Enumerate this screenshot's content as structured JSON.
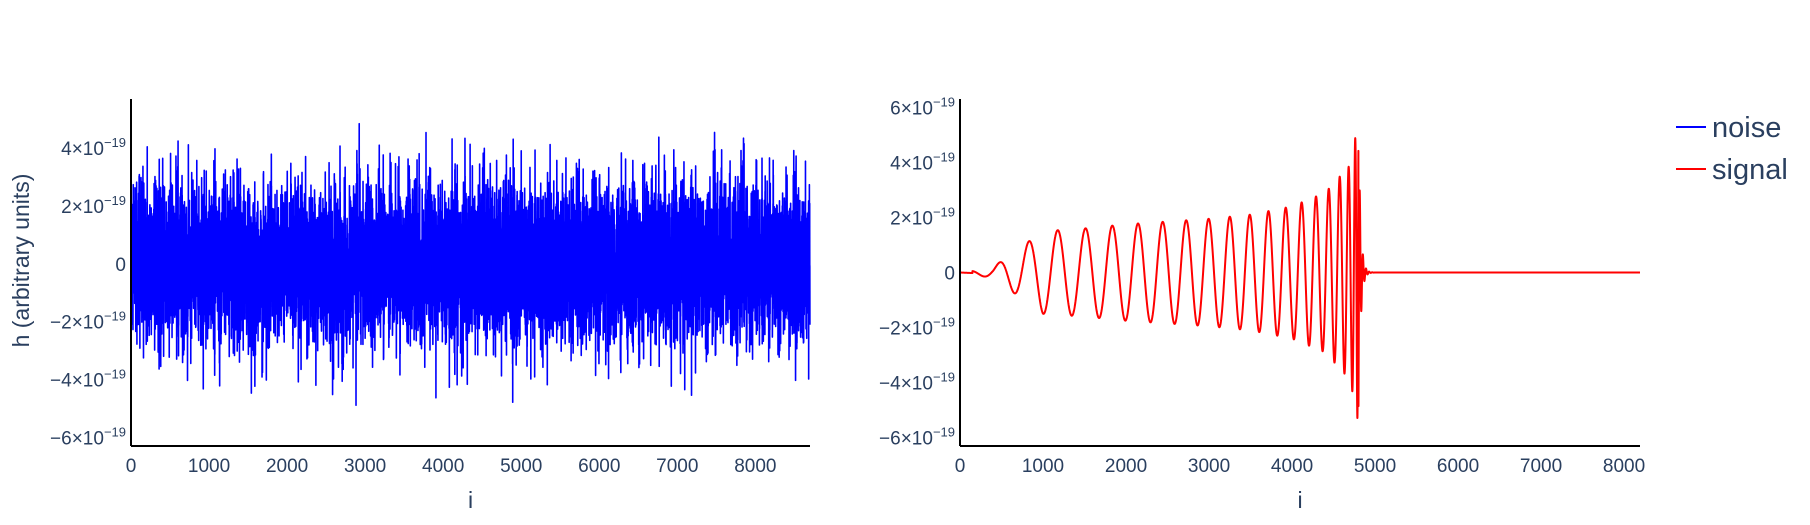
{
  "chart_data": [
    {
      "type": "line",
      "name": "left-panel",
      "xlabel": "i",
      "ylabel": "h (arbitrary units)",
      "xlim": [
        0,
        8700
      ],
      "ylim": [
        -6.3e-19,
        5.7e-19
      ],
      "x_ticks": [
        0,
        1000,
        2000,
        3000,
        4000,
        5000,
        6000,
        7000,
        8000
      ],
      "x_tick_labels": [
        "0",
        "1000",
        "2000",
        "3000",
        "4000",
        "5000",
        "6000",
        "7000",
        "8000"
      ],
      "y_ticks": [
        -6e-19,
        -4e-19,
        -2e-19,
        0,
        2e-19,
        4e-19
      ],
      "y_tick_labels": [
        {
          "mant": "−6×10",
          "exp": "−19"
        },
        {
          "mant": "−4×10",
          "exp": "−19"
        },
        {
          "mant": "−2×10",
          "exp": "−19"
        },
        {
          "mant": "0",
          "exp": ""
        },
        {
          "mant": "2×10",
          "exp": "−19"
        },
        {
          "mant": "4×10",
          "exp": "−19"
        }
      ],
      "series": [
        {
          "name": "noise",
          "color": "#0000ff",
          "n_samples": 8700,
          "x_start": 0,
          "x_end": 8699,
          "std": 1.4e-19,
          "min": -5.8e-19,
          "max": 5e-19
        }
      ]
    },
    {
      "type": "line",
      "name": "right-panel",
      "xlabel": "i",
      "ylabel": "",
      "xlim": [
        0,
        8192
      ],
      "ylim": [
        -6.3e-19,
        6.3e-19
      ],
      "x_ticks": [
        0,
        1000,
        2000,
        3000,
        4000,
        5000,
        6000,
        7000,
        8000
      ],
      "x_tick_labels": [
        "0",
        "1000",
        "2000",
        "3000",
        "4000",
        "5000",
        "6000",
        "7000",
        "8000"
      ],
      "y_ticks": [
        -6e-19,
        -4e-19,
        -2e-19,
        0,
        2e-19,
        4e-19,
        6e-19
      ],
      "y_tick_labels": [
        {
          "mant": "−6×10",
          "exp": "−19"
        },
        {
          "mant": "−4×10",
          "exp": "−19"
        },
        {
          "mant": "−2×10",
          "exp": "−19"
        },
        {
          "mant": "0",
          "exp": ""
        },
        {
          "mant": "2×10",
          "exp": "−19"
        },
        {
          "mant": "4×10",
          "exp": "−19"
        },
        {
          "mant": "6×10",
          "exp": "−19"
        }
      ],
      "series": [
        {
          "name": "signal",
          "color": "#ff0000",
          "x_start": 0,
          "x_end": 8192,
          "merger_x": 4800,
          "peak": 5.5e-19,
          "trough": -5.6e-19,
          "envelope": [
            [
              0,
              0.0
            ],
            [
              400,
              2e-20
            ],
            [
              700,
              8.5e-20
            ],
            [
              1000,
              1.5e-19
            ],
            [
              1500,
              1.6e-19
            ],
            [
              2000,
              1.75e-19
            ],
            [
              2500,
              1.85e-19
            ],
            [
              3000,
              1.95e-19
            ],
            [
              3500,
              2.1e-19
            ],
            [
              4000,
              2.4e-19
            ],
            [
              4400,
              2.9e-19
            ],
            [
              4700,
              3.9e-19
            ],
            [
              4800,
              5.5e-19
            ]
          ]
        }
      ]
    }
  ],
  "legend": {
    "position": "top-right",
    "items": [
      {
        "name": "noise",
        "color": "#0000ff"
      },
      {
        "name": "signal",
        "color": "#ff0000"
      }
    ]
  }
}
